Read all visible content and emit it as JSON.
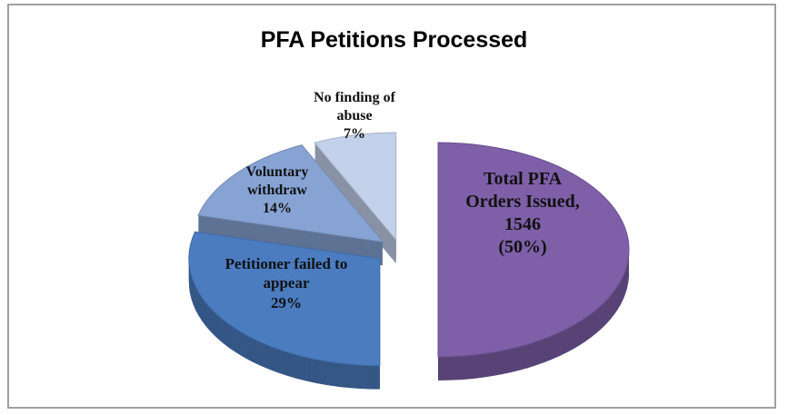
{
  "chart_data": {
    "type": "pie",
    "title": "PFA Petitions Processed",
    "categories": [
      "Total PFA Orders Issued, 1546",
      "Petitioner failed to appear",
      "Voluntary withdraw",
      "No finding of abuse"
    ],
    "values": [
      50,
      29,
      14,
      7
    ],
    "value_labels": [
      "(50%)",
      "29%",
      "14%",
      "7%"
    ],
    "colors": [
      "#7e5fa8",
      "#4b7cc0",
      "#86a3d3",
      "#c3d1ea"
    ]
  }
}
